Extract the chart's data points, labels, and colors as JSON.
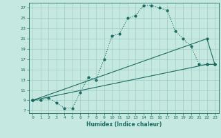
{
  "xlabel": "Humidex (Indice chaleur)",
  "background_color": "#c5e8e0",
  "grid_color": "#a0ccc4",
  "line_color": "#1a6b60",
  "xlim": [
    -0.5,
    23.5
  ],
  "ylim": [
    6.5,
    28.0
  ],
  "xticks": [
    0,
    1,
    2,
    3,
    4,
    5,
    6,
    7,
    8,
    9,
    10,
    11,
    12,
    13,
    14,
    15,
    16,
    17,
    18,
    19,
    20,
    21,
    22,
    23
  ],
  "yticks": [
    7,
    9,
    11,
    13,
    15,
    17,
    19,
    21,
    23,
    25,
    27
  ],
  "line1_x": [
    0,
    1,
    2,
    3,
    4,
    5,
    6,
    7,
    8,
    9,
    10,
    11,
    12,
    13,
    14,
    15,
    16,
    17,
    18,
    19,
    20,
    21,
    22,
    23
  ],
  "line1_y": [
    9,
    9,
    9.5,
    8.5,
    7.5,
    7.5,
    10.5,
    13.5,
    13,
    17,
    21.5,
    22,
    25,
    25.5,
    27.5,
    27.5,
    27,
    26.5,
    22.5,
    21,
    19.5,
    16,
    16,
    16
  ],
  "line2_x": [
    0,
    22,
    23
  ],
  "line2_y": [
    9,
    21,
    16
  ],
  "line3_x": [
    0,
    22,
    23
  ],
  "line3_y": [
    9,
    16,
    16
  ]
}
